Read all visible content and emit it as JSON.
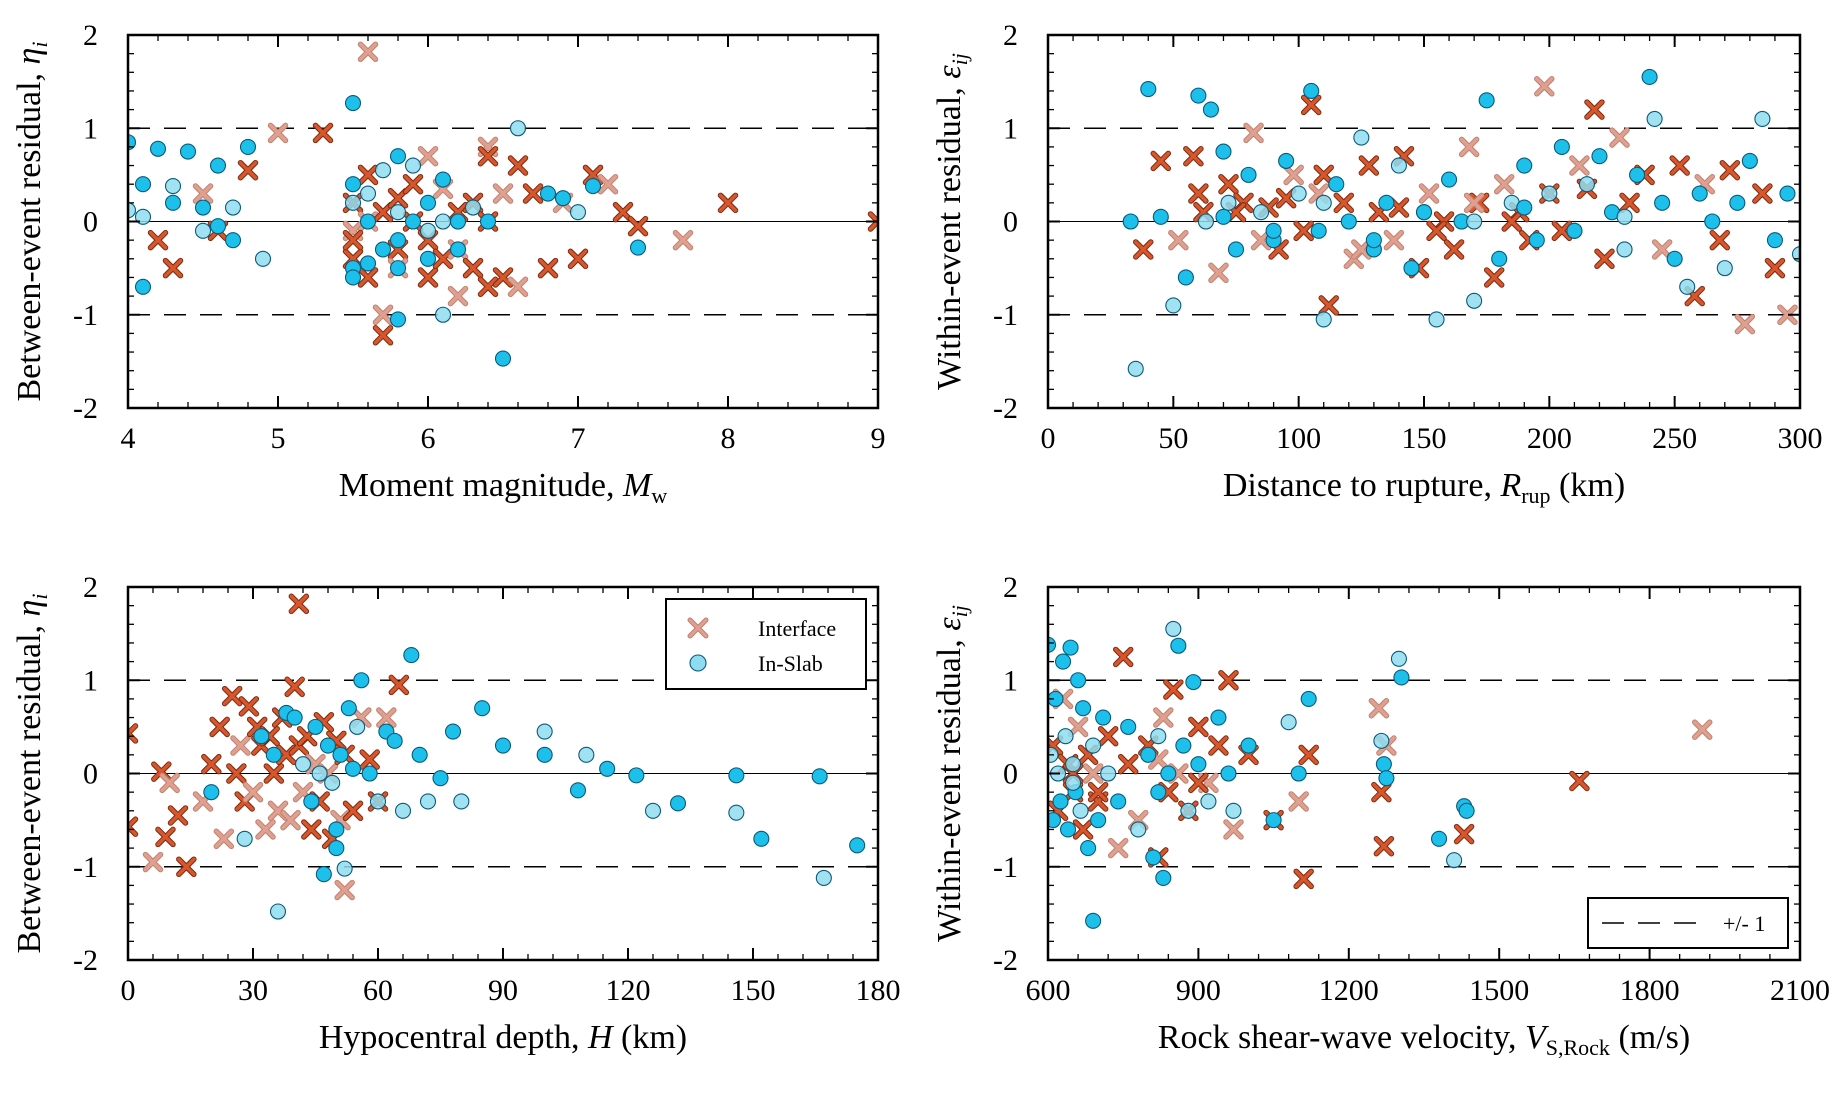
{
  "colors": {
    "interface_fill": "#d8562c",
    "interface_stroke": "#7a2a10",
    "interface_light": "#e0a090",
    "inslab_fill": "#1cc0ea",
    "inslab_stroke": "#0a5a78",
    "inslab_light": "#8fdcf0"
  },
  "legend": {
    "interface_label": "Interface",
    "inslab_label": "In-Slab",
    "dash_label": "+/- 1"
  },
  "chart_data": [
    {
      "type": "scatter",
      "xlabel": {
        "main": "Moment magnitude, ",
        "var": "M",
        "sub": "w",
        "tail": ""
      },
      "ylabel": {
        "main": "Between-event residual, ",
        "var": "η",
        "sub": "i"
      },
      "xlim": [
        4,
        9
      ],
      "ylim": [
        -2,
        2
      ],
      "xticks": [
        4,
        5,
        6,
        7,
        8,
        9
      ],
      "yticks": [
        -2,
        -1,
        0,
        1,
        2
      ],
      "reference_lines": [
        -1,
        0,
        1
      ],
      "series": [
        {
          "name": "Interface",
          "marker": "x",
          "x": [
            4.2,
            4.3,
            4.5,
            4.6,
            4.8,
            5.0,
            5.3,
            5.5,
            5.5,
            5.5,
            5.6,
            5.6,
            5.6,
            5.7,
            5.7,
            5.8,
            5.8,
            5.8,
            5.9,
            5.9,
            6.0,
            6.0,
            6.0,
            6.1,
            6.1,
            6.2,
            6.2,
            6.3,
            6.3,
            6.4,
            6.4,
            6.4,
            6.5,
            6.5,
            6.6,
            6.6,
            6.7,
            6.8,
            6.9,
            7.0,
            7.1,
            7.2,
            7.3,
            7.4,
            7.7,
            8.0,
            9.0,
            5.6,
            5.7,
            5.5,
            6.2,
            6.4
          ],
          "y": [
            -0.2,
            -0.5,
            0.3,
            -0.1,
            0.55,
            0.95,
            0.95,
            0.2,
            -0.1,
            -0.4,
            0.5,
            0.0,
            -0.6,
            0.1,
            -1.0,
            0.25,
            -0.3,
            -0.5,
            0.4,
            0.0,
            0.7,
            -0.2,
            -0.6,
            0.35,
            -0.4,
            0.1,
            -0.3,
            -0.5,
            0.2,
            0.8,
            0.7,
            -0.7,
            0.3,
            -0.6,
            0.6,
            -0.7,
            0.3,
            -0.5,
            0.2,
            -0.4,
            0.5,
            0.4,
            0.1,
            -0.05,
            -0.2,
            0.2,
            0.0,
            1.82,
            -1.22,
            -0.2,
            -0.8,
            0.0
          ]
        },
        {
          "name": "In-Slab",
          "marker": "o",
          "x": [
            4.0,
            4.0,
            4.1,
            4.1,
            4.1,
            4.2,
            4.3,
            4.3,
            4.4,
            4.5,
            4.5,
            4.6,
            4.6,
            4.7,
            4.7,
            4.8,
            4.9,
            5.5,
            5.5,
            5.5,
            5.5,
            5.5,
            5.6,
            5.6,
            5.6,
            5.7,
            5.7,
            5.8,
            5.8,
            5.8,
            5.8,
            5.9,
            5.9,
            6.0,
            6.0,
            6.0,
            6.1,
            6.1,
            6.2,
            6.2,
            6.3,
            6.4,
            6.5,
            6.6,
            6.8,
            6.9,
            7.0,
            7.1,
            7.4,
            6.1,
            5.8
          ],
          "y": [
            0.85,
            0.12,
            -0.7,
            0.4,
            0.05,
            0.78,
            0.2,
            0.38,
            0.75,
            0.15,
            -0.1,
            0.6,
            -0.05,
            0.15,
            -0.2,
            0.8,
            -0.4,
            1.27,
            0.4,
            0.2,
            -0.5,
            -0.6,
            0.3,
            0.0,
            -0.45,
            0.55,
            -0.3,
            0.7,
            0.1,
            -0.2,
            -0.5,
            0.6,
            0.0,
            0.2,
            -0.1,
            -0.4,
            0.45,
            0.0,
            0.0,
            -0.3,
            0.15,
            0.0,
            -1.47,
            1.0,
            0.3,
            0.25,
            0.1,
            0.38,
            -0.28,
            -1.0,
            -1.05
          ]
        }
      ]
    },
    {
      "type": "scatter",
      "xlabel": {
        "main": "Distance to rupture, ",
        "var": "R",
        "sub": "rup",
        "tail": " (km)"
      },
      "ylabel": {
        "main": "Within-event residual, ",
        "var": "ε",
        "sub": "ij"
      },
      "xlim": [
        0,
        300
      ],
      "ylim": [
        -2,
        2
      ],
      "xticks": [
        0,
        50,
        100,
        150,
        200,
        250,
        300
      ],
      "yticks": [
        -2,
        -1,
        0,
        1,
        2
      ],
      "reference_lines": [
        -1,
        0,
        1
      ],
      "series": [
        {
          "name": "Interface",
          "marker": "x",
          "x": [
            38,
            45,
            52,
            58,
            62,
            68,
            72,
            78,
            82,
            88,
            92,
            98,
            102,
            105,
            108,
            112,
            118,
            122,
            128,
            132,
            138,
            142,
            148,
            152,
            158,
            162,
            168,
            172,
            178,
            182,
            188,
            192,
            198,
            200,
            205,
            212,
            218,
            222,
            228,
            232,
            238,
            245,
            252,
            258,
            262,
            268,
            272,
            278,
            285,
            290,
            295,
            60,
            75,
            85,
            95,
            110,
            125,
            140,
            155,
            170,
            185,
            215
          ],
          "y": [
            -0.3,
            0.65,
            -0.2,
            0.7,
            0.1,
            -0.55,
            0.4,
            0.2,
            0.95,
            0.15,
            -0.3,
            0.5,
            -0.1,
            1.25,
            0.3,
            -0.9,
            0.2,
            -0.4,
            0.6,
            0.1,
            -0.2,
            0.7,
            -0.5,
            0.3,
            0.0,
            -0.3,
            0.8,
            0.2,
            -0.6,
            0.4,
            0.1,
            -0.2,
            1.45,
            0.3,
            -0.1,
            0.6,
            1.2,
            -0.4,
            0.9,
            0.2,
            0.5,
            -0.3,
            0.6,
            -0.8,
            0.4,
            -0.2,
            0.55,
            -1.1,
            0.3,
            -0.5,
            -1.0,
            0.3,
            0.1,
            -0.2,
            0.25,
            0.5,
            -0.3,
            0.15,
            -0.1,
            0.2,
            0.0,
            0.35
          ]
        },
        {
          "name": "In-Slab",
          "marker": "o",
          "x": [
            33,
            35,
            40,
            45,
            50,
            55,
            60,
            63,
            65,
            70,
            72,
            75,
            80,
            85,
            90,
            95,
            100,
            105,
            108,
            110,
            115,
            120,
            125,
            130,
            135,
            140,
            145,
            150,
            155,
            160,
            165,
            170,
            175,
            180,
            185,
            190,
            195,
            200,
            205,
            210,
            215,
            220,
            225,
            230,
            235,
            240,
            242,
            245,
            250,
            255,
            260,
            265,
            270,
            275,
            280,
            285,
            290,
            295,
            300,
            70,
            90,
            110,
            130,
            150,
            170,
            190,
            210,
            230
          ],
          "y": [
            0.0,
            -1.58,
            1.42,
            0.05,
            -0.9,
            -0.6,
            1.35,
            0.0,
            1.2,
            0.75,
            0.2,
            -0.3,
            0.5,
            0.1,
            -0.2,
            0.65,
            0.3,
            1.4,
            -0.1,
            -1.05,
            0.4,
            0.0,
            0.9,
            -0.3,
            0.2,
            0.6,
            -0.5,
            0.1,
            -1.05,
            0.45,
            0.0,
            -0.85,
            1.3,
            -0.4,
            0.2,
            0.6,
            -0.2,
            0.3,
            0.8,
            -0.1,
            0.4,
            0.7,
            0.1,
            -0.3,
            0.5,
            1.55,
            1.1,
            0.2,
            -0.4,
            -0.7,
            0.3,
            0.0,
            -0.5,
            0.2,
            0.65,
            1.1,
            -0.2,
            0.3,
            -0.35,
            0.05,
            -0.1,
            0.2,
            -0.2,
            0.1,
            0.0,
            0.15,
            -0.1,
            0.05
          ]
        }
      ]
    },
    {
      "type": "scatter",
      "xlabel": {
        "main": "Hypocentral depth, ",
        "var": "H",
        "sub": "",
        "tail": " (km)"
      },
      "ylabel": {
        "main": "Between-event residual, ",
        "var": "η",
        "sub": "i"
      },
      "xlim": [
        0,
        180
      ],
      "ylim": [
        -2,
        2
      ],
      "xticks": [
        0,
        30,
        60,
        90,
        120,
        150,
        180
      ],
      "yticks": [
        -2,
        -1,
        0,
        1,
        2
      ],
      "reference_lines": [
        -1,
        0,
        1
      ],
      "series": [
        {
          "name": "Interface",
          "marker": "x",
          "x": [
            0,
            0,
            6,
            8,
            9,
            10,
            12,
            14,
            18,
            20,
            22,
            23,
            25,
            26,
            27,
            28,
            29,
            30,
            31,
            32,
            33,
            34,
            35,
            36,
            37,
            38,
            39,
            40,
            41,
            42,
            43,
            44,
            45,
            46,
            47,
            48,
            49,
            50,
            51,
            52,
            54,
            56,
            58,
            60,
            62,
            65,
            41,
            52
          ],
          "y": [
            0.43,
            -0.57,
            -0.95,
            0.02,
            -0.68,
            -0.1,
            -0.45,
            -1.0,
            -0.3,
            0.1,
            0.5,
            -0.7,
            0.83,
            0.0,
            0.3,
            -0.3,
            0.72,
            -0.2,
            0.5,
            0.3,
            -0.6,
            0.4,
            0.0,
            -0.4,
            0.6,
            0.2,
            -0.5,
            0.93,
            0.3,
            -0.2,
            0.4,
            -0.6,
            0.1,
            -0.3,
            0.55,
            0.0,
            -0.7,
            0.35,
            -0.5,
            0.2,
            -0.4,
            0.6,
            0.15,
            -0.3,
            0.6,
            0.95,
            1.82,
            -1.25
          ]
        },
        {
          "name": "In-Slab",
          "marker": "o",
          "x": [
            20,
            28,
            32,
            35,
            36,
            38,
            40,
            42,
            44,
            45,
            46,
            47,
            48,
            49,
            50,
            51,
            52,
            53,
            54,
            55,
            56,
            58,
            60,
            62,
            64,
            66,
            68,
            70,
            72,
            75,
            78,
            80,
            85,
            90,
            100,
            100,
            108,
            110,
            115,
            122,
            126,
            132,
            146,
            146,
            152,
            166,
            167,
            175,
            50
          ],
          "y": [
            -0.2,
            -0.7,
            0.4,
            0.2,
            -1.48,
            0.65,
            0.6,
            0.1,
            -0.3,
            0.5,
            0.0,
            -1.08,
            0.3,
            -0.1,
            -0.8,
            0.2,
            -1.02,
            0.7,
            0.05,
            0.5,
            1.0,
            0.0,
            -0.3,
            0.45,
            0.35,
            -0.4,
            1.27,
            0.2,
            -0.3,
            -0.05,
            0.45,
            -0.3,
            0.7,
            0.3,
            0.45,
            0.2,
            -0.18,
            0.2,
            0.05,
            -0.02,
            -0.4,
            -0.32,
            -0.02,
            -0.42,
            -0.7,
            -0.03,
            -1.12,
            -0.77,
            -0.6
          ]
        }
      ]
    },
    {
      "type": "scatter",
      "xlabel": {
        "main": "Rock shear-wave velocity, ",
        "var": "V",
        "sub": "S,Rock",
        "tail": " (m/s)"
      },
      "ylabel": {
        "main": "Within-event residual, ",
        "var": "ε",
        "sub": "ij"
      },
      "xlim": [
        600,
        2100
      ],
      "ylim": [
        -2,
        2
      ],
      "xticks": [
        600,
        900,
        1200,
        1500,
        1800,
        2100
      ],
      "yticks": [
        -2,
        -1,
        0,
        1,
        2
      ],
      "reference_lines": [
        -1,
        0,
        1
      ],
      "series": [
        {
          "name": "Interface",
          "marker": "x",
          "x": [
            610,
            620,
            630,
            640,
            650,
            660,
            670,
            680,
            690,
            700,
            720,
            740,
            750,
            760,
            780,
            800,
            820,
            830,
            840,
            850,
            860,
            880,
            900,
            920,
            940,
            960,
            970,
            1000,
            1050,
            1100,
            1110,
            1120,
            1260,
            1265,
            1270,
            1275,
            1430,
            1660,
            1905,
            650,
            700,
            820,
            900
          ],
          "y": [
            0.3,
            -0.4,
            0.8,
            0.1,
            -0.2,
            0.5,
            -0.6,
            0.2,
            0.0,
            -0.3,
            0.4,
            -0.8,
            1.25,
            0.1,
            -0.5,
            0.3,
            -0.9,
            0.6,
            -0.2,
            0.9,
            0.0,
            -0.4,
            0.5,
            -0.1,
            0.3,
            1.0,
            -0.6,
            0.2,
            -0.5,
            -0.3,
            -1.13,
            0.2,
            0.7,
            -0.2,
            -0.78,
            0.3,
            -0.65,
            -0.08,
            0.47,
            0.0,
            -0.2,
            0.15,
            -0.1
          ]
        },
        {
          "name": "In-Slab",
          "marker": "o",
          "x": [
            600,
            605,
            610,
            615,
            620,
            625,
            630,
            635,
            640,
            645,
            650,
            655,
            660,
            665,
            670,
            680,
            690,
            700,
            710,
            720,
            740,
            760,
            780,
            800,
            810,
            820,
            830,
            840,
            850,
            860,
            870,
            880,
            890,
            900,
            920,
            940,
            960,
            970,
            1000,
            1050,
            1080,
            1100,
            1120,
            1265,
            1270,
            1275,
            1300,
            1305,
            1380,
            1410,
            1430,
            1435,
            650,
            690,
            820
          ],
          "y": [
            1.38,
            0.2,
            -0.5,
            0.8,
            0.0,
            -0.3,
            1.2,
            0.4,
            -0.6,
            1.35,
            0.1,
            -0.2,
            1.0,
            -0.4,
            0.7,
            -0.8,
            0.3,
            -0.5,
            0.6,
            0.0,
            -0.3,
            0.5,
            -0.6,
            0.2,
            -0.9,
            0.4,
            -1.12,
            0.0,
            1.55,
            1.37,
            0.3,
            -0.4,
            0.98,
            0.1,
            -0.3,
            0.6,
            0.0,
            -0.4,
            0.3,
            -0.5,
            0.55,
            0.0,
            0.8,
            0.35,
            0.1,
            -0.05,
            1.23,
            1.03,
            -0.7,
            -0.93,
            -0.35,
            -0.4,
            -0.1,
            -1.58,
            -0.2
          ]
        }
      ]
    }
  ]
}
